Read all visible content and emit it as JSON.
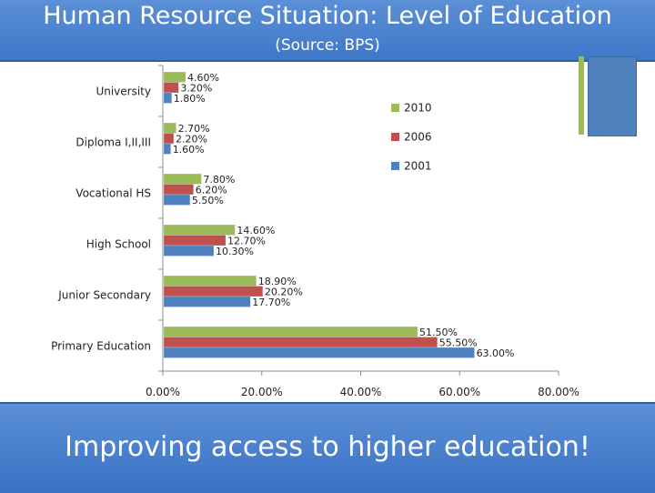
{
  "header": {
    "title": "Human Resource Situation: Level of Education",
    "subtitle": "(Source: BPS)"
  },
  "footer": {
    "tagline": "Improving access to higher education!"
  },
  "colors": {
    "header_bg": "#4a84d0",
    "accent_green": "#9bbb59",
    "accent_blue": "#4f81bd"
  },
  "chart_data": {
    "type": "bar",
    "orientation": "horizontal",
    "categories": [
      "University",
      "Diploma I,II,III",
      "Vocational HS",
      "High School",
      "Junior Secondary",
      "Primary Education"
    ],
    "series": [
      {
        "name": "2010",
        "color": "#9bbb59",
        "values": [
          4.6,
          2.7,
          7.8,
          14.6,
          18.9,
          51.5
        ],
        "labels": [
          "4.60%",
          "2.70%",
          "7.80%",
          "14.60%",
          "18.90%",
          "51.50%"
        ]
      },
      {
        "name": "2006",
        "color": "#c0504d",
        "values": [
          3.2,
          2.2,
          6.2,
          12.7,
          20.2,
          55.5
        ],
        "labels": [
          "3.20%",
          "2.20%",
          "6.20%",
          "12.70%",
          "20.20%",
          "55.50%"
        ]
      },
      {
        "name": "2001",
        "color": "#4f81bd",
        "values": [
          1.8,
          1.6,
          5.5,
          10.3,
          17.7,
          63.0
        ],
        "labels": [
          "1.80%",
          "1.60%",
          "5.50%",
          "10.30%",
          "17.70%",
          "63.00%"
        ]
      }
    ],
    "x_ticks": [
      "0.00%",
      "20.00%",
      "40.00%",
      "60.00%",
      "80.00%"
    ],
    "xlim": [
      0,
      80
    ],
    "legend_position": "right",
    "grid": false
  }
}
